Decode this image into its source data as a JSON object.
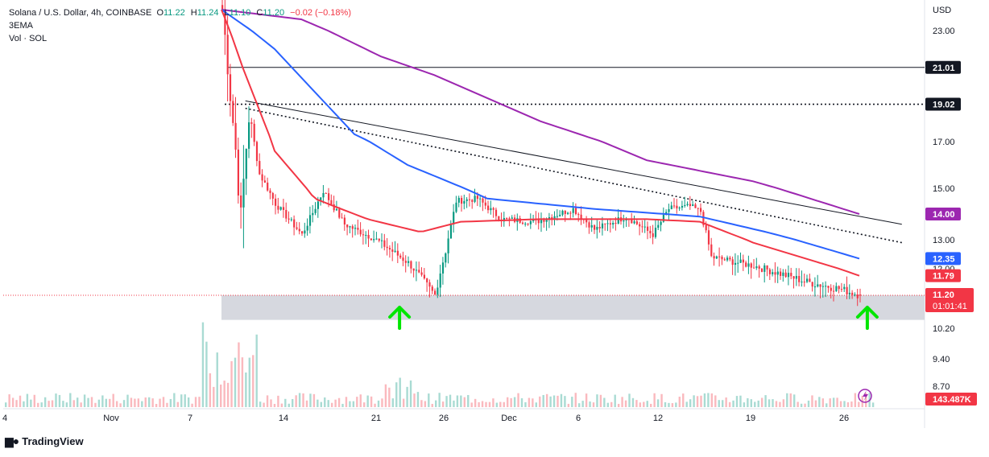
{
  "header": {
    "symbol": "Solana / U.S. Dollar, 4h, COINBASE",
    "o_label": "O",
    "o_value": "11.22",
    "h_label": "H",
    "h_value": "11.24",
    "l_label": "L",
    "l_value": "11.10",
    "c_label": "C",
    "c_value": "11.20",
    "change": "−0.02 (−0.18%)",
    "indicator": "3EMA",
    "volume_label": "Vol · SOL"
  },
  "currency": "USD",
  "price_axis_ticks": [
    "23.00",
    "17.00",
    "15.00",
    "13.00",
    "12.00",
    "10.20",
    "9.40",
    "8.70"
  ],
  "badges": {
    "h1": "21.01",
    "h2": "19.02",
    "ema_slow": "14.00",
    "ema_mid": "12.35",
    "ema_fast": "11.79",
    "last_price": "11.20",
    "countdown": "01:01:41",
    "volume": "143.487K"
  },
  "time_axis_labels": [
    "4",
    "Nov",
    "7",
    "14",
    "21",
    "26",
    "Dec",
    "6",
    "12",
    "19",
    "26"
  ],
  "branding": {
    "name": "TradingView"
  },
  "colors": {
    "up": "#089981",
    "down": "#f23645",
    "ema_fast": "#f23645",
    "ema_mid": "#2962ff",
    "ema_slow": "#9c27b0",
    "arrow": "#00e600",
    "zone": "#d1d4dc"
  },
  "chart_data": {
    "type": "candlestick",
    "symbol": "SOL/USD",
    "interval": "4h",
    "x_axis": [
      "4",
      "Nov",
      "7",
      "14",
      "21",
      "26",
      "Dec",
      "6",
      "12",
      "19",
      "26"
    ],
    "ylim": [
      8.5,
      24.5
    ],
    "last_price": 11.2,
    "ohlc": {
      "open": 11.22,
      "high": 11.24,
      "low": 11.1,
      "close": 11.2,
      "change": -0.02,
      "change_pct": -0.18
    },
    "price_path": [
      [
        0,
        24.3
      ],
      [
        3,
        19.5
      ],
      [
        7,
        13.8
      ],
      [
        10,
        18.3
      ],
      [
        14,
        15.6
      ],
      [
        20,
        14.4
      ],
      [
        30,
        13.2
      ],
      [
        38,
        14.9
      ],
      [
        46,
        13.6
      ],
      [
        58,
        13.0
      ],
      [
        70,
        12.2
      ],
      [
        80,
        11.2
      ],
      [
        84,
        12.6
      ],
      [
        88,
        14.5
      ],
      [
        96,
        14.6
      ],
      [
        105,
        13.8
      ],
      [
        118,
        13.7
      ],
      [
        132,
        14.2
      ],
      [
        140,
        13.4
      ],
      [
        152,
        13.9
      ],
      [
        162,
        13.2
      ],
      [
        168,
        14.2
      ],
      [
        176,
        14.3
      ],
      [
        180,
        14.1
      ],
      [
        184,
        12.4
      ],
      [
        200,
        12.1
      ],
      [
        220,
        11.6
      ],
      [
        232,
        11.4
      ],
      [
        240,
        11.2
      ]
    ],
    "ema_fast": {
      "name": "EMA",
      "color": "#f23645",
      "last": 11.79,
      "points": [
        [
          0,
          24.3
        ],
        [
          8,
          21.0
        ],
        [
          20,
          16.6
        ],
        [
          35,
          14.6
        ],
        [
          55,
          13.8
        ],
        [
          75,
          13.3
        ],
        [
          90,
          13.7
        ],
        [
          120,
          13.8
        ],
        [
          160,
          13.8
        ],
        [
          180,
          13.7
        ],
        [
          200,
          12.9
        ],
        [
          240,
          11.79
        ]
      ]
    },
    "ema_mid": {
      "name": "EMA",
      "color": "#2962ff",
      "last": 12.35,
      "points": [
        [
          0,
          24.3
        ],
        [
          20,
          22.0
        ],
        [
          50,
          17.4
        ],
        [
          70,
          16.0
        ],
        [
          100,
          14.6
        ],
        [
          140,
          14.2
        ],
        [
          180,
          13.9
        ],
        [
          205,
          13.3
        ],
        [
          240,
          12.35
        ]
      ]
    },
    "ema_slow": {
      "name": "EMA",
      "color": "#9c27b0",
      "last": 14.0,
      "points": [
        [
          0,
          24.3
        ],
        [
          30,
          23.7
        ],
        [
          60,
          21.6
        ],
        [
          80,
          20.6
        ],
        [
          120,
          18.1
        ],
        [
          160,
          16.2
        ],
        [
          200,
          15.3
        ],
        [
          240,
          14.0
        ]
      ]
    },
    "levels": [
      21.01,
      19.02
    ],
    "support_zone": [
      10.6,
      11.2
    ],
    "trendlines": [
      {
        "style": "solid",
        "from": [
          9,
          19.2
        ],
        "to": [
          256,
          13.6
        ]
      },
      {
        "style": "dotted",
        "from": [
          9,
          18.8
        ],
        "to": [
          256,
          12.9
        ]
      }
    ],
    "volume_last": "143.487K"
  }
}
